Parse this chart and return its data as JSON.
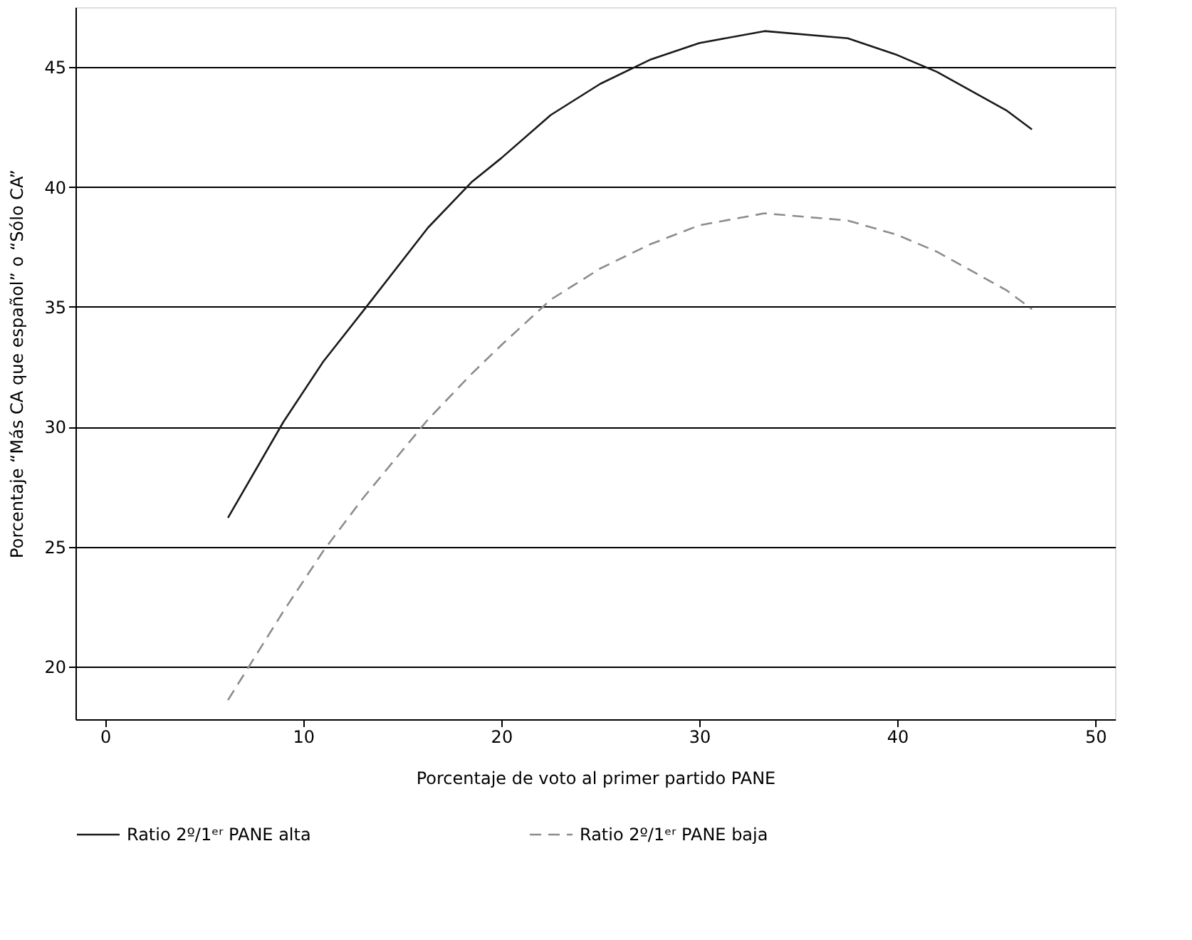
{
  "chart_data": {
    "type": "line",
    "xlabel": "Porcentaje de voto al primer partido PANE",
    "ylabel": "Porcentaje “Más CA que español” o “Sólo CA”",
    "xlim": [
      -1.5,
      51
    ],
    "xticks": [
      0,
      10,
      20,
      30,
      40,
      50
    ],
    "ylim": [
      17.8,
      47.5
    ],
    "yticks": [
      20,
      25,
      30,
      35,
      40,
      45
    ],
    "grid": "y",
    "legend": "bottom",
    "series": [
      {
        "name": "Ratio 2º/1ᵉʳ PANE alta",
        "color": "#1a1a1a",
        "line_style": "solid",
        "x": [
          6.2,
          9,
          11,
          13,
          16.3,
          18.5,
          20,
          22.5,
          25,
          27.5,
          30,
          33.3,
          37.5,
          40,
          42,
          45.5,
          46.8
        ],
        "values": [
          26.2,
          30.2,
          32.7,
          34.8,
          38.3,
          40.2,
          41.2,
          43.0,
          44.3,
          45.3,
          46.0,
          46.5,
          46.2,
          45.5,
          44.8,
          43.2,
          42.4
        ]
      },
      {
        "name": "Ratio 2º/1ᵉʳ PANE baja",
        "color": "#8c8c8c",
        "line_style": "dashed",
        "x": [
          6.2,
          9,
          11,
          13,
          16.3,
          18.5,
          20,
          22.5,
          25,
          27.5,
          30,
          33.3,
          37.5,
          40,
          42,
          45.5,
          46.8
        ],
        "values": [
          18.6,
          22.3,
          24.8,
          27.0,
          30.3,
          32.2,
          33.4,
          35.3,
          36.6,
          37.6,
          38.4,
          38.9,
          38.6,
          38.0,
          37.3,
          35.7,
          34.9
        ]
      }
    ]
  }
}
